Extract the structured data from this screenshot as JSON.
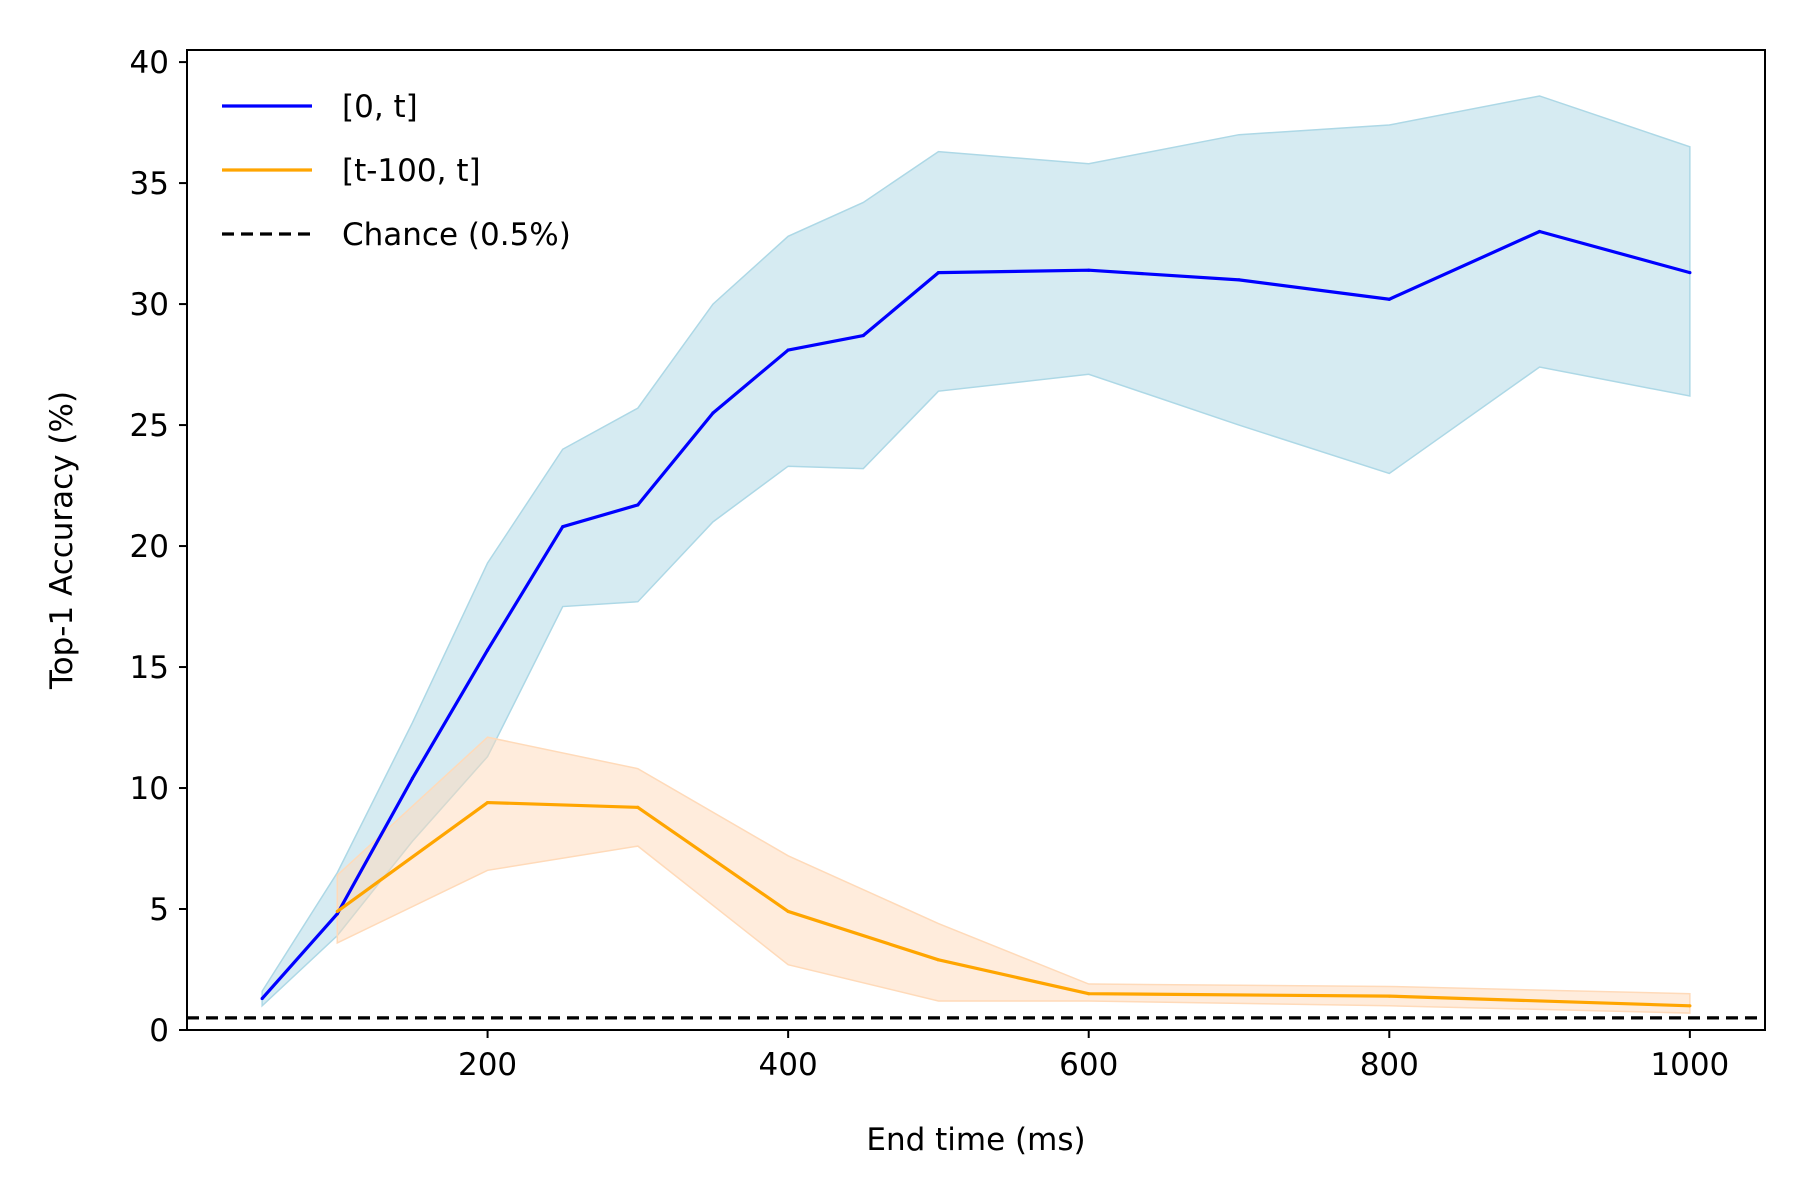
{
  "chart_data": {
    "type": "line",
    "xlabel": "End time (ms)",
    "ylabel": "Top-1 Accuracy (%)",
    "xlim": [
      0,
      1050
    ],
    "ylim": [
      0,
      40.5
    ],
    "xticks": [
      200,
      400,
      600,
      800,
      1000
    ],
    "yticks": [
      0,
      5,
      10,
      15,
      20,
      25,
      30,
      35,
      40
    ],
    "grid": false,
    "legend_position": "upper-left",
    "series": [
      {
        "name": "[0, t]",
        "color": "#0000ff",
        "band_color": "#add8e6",
        "x": [
          50,
          100,
          150,
          200,
          250,
          300,
          350,
          400,
          450,
          500,
          600,
          700,
          800,
          900,
          1000
        ],
        "y": [
          1.3,
          4.8,
          10.4,
          15.7,
          20.8,
          21.7,
          25.5,
          28.1,
          28.7,
          31.3,
          31.4,
          31.0,
          30.2,
          33.0,
          31.3
        ],
        "lower": [
          1.0,
          3.9,
          7.8,
          11.3,
          17.5,
          17.7,
          21.0,
          23.3,
          23.2,
          26.4,
          27.1,
          25.0,
          23.0,
          27.4,
          26.2
        ],
        "upper": [
          1.6,
          6.5,
          12.7,
          19.3,
          24.0,
          25.7,
          30.0,
          32.8,
          34.2,
          36.3,
          35.8,
          37.0,
          37.4,
          38.6,
          36.5
        ]
      },
      {
        "name": "[t-100, t]",
        "color": "#ffa500",
        "band_color": "#ffdab9",
        "x": [
          100,
          200,
          300,
          400,
          500,
          600,
          800,
          1000
        ],
        "y": [
          4.9,
          9.4,
          9.2,
          4.9,
          2.9,
          1.5,
          1.4,
          1.0
        ],
        "lower": [
          3.6,
          6.6,
          7.6,
          2.7,
          1.2,
          1.2,
          1.0,
          0.7
        ],
        "upper": [
          6.4,
          12.1,
          10.8,
          7.2,
          4.4,
          1.9,
          1.8,
          1.5
        ]
      }
    ],
    "reference_lines": [
      {
        "name": "Chance (0.5%)",
        "y": 0.5,
        "color": "#000000",
        "style": "dashed"
      }
    ]
  }
}
